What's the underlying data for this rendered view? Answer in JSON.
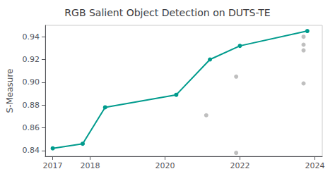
{
  "chart_data": {
    "type": "line",
    "title": "RGB Salient Object Detection on DUTS-TE",
    "ylabel": "S-Measure",
    "series": [
      {
        "type": "line",
        "color": "#009B8D",
        "marker": "circle",
        "x": [
          2017.0,
          2017.8,
          2018.4,
          2020.3,
          2021.2,
          2022.0,
          2023.8
        ],
        "values": [
          0.842,
          0.846,
          0.878,
          0.889,
          0.92,
          0.932,
          0.945
        ]
      },
      {
        "type": "scatter",
        "color": "#AAAAAA",
        "marker": "circle",
        "x": [
          2021.1,
          2021.9,
          2021.9,
          2023.7,
          2023.7,
          2023.7,
          2023.7
        ],
        "values": [
          0.871,
          0.905,
          0.838,
          0.928,
          0.899,
          0.94,
          0.933
        ]
      }
    ],
    "xlim": [
      2016.8,
      2024.2
    ],
    "ylim": [
      0.835,
      0.95
    ],
    "xticks": [
      2017,
      2018,
      2020,
      2022,
      2024
    ],
    "yticks": [
      0.84,
      0.86,
      0.88,
      {
        "value": 0.9,
        "label": "0.90"
      },
      0.92,
      0.94
    ],
    "grid": false
  }
}
